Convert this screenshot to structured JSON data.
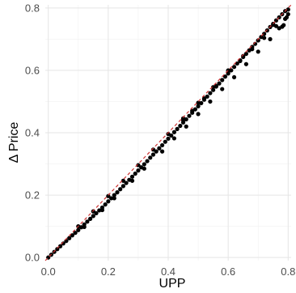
{
  "chart_data": {
    "type": "scatter",
    "title": "",
    "xlabel": "UPP",
    "ylabel": "Δ Price",
    "xlim": [
      -0.01,
      0.81
    ],
    "ylim": [
      -0.01,
      0.81
    ],
    "x_ticks": [
      0.0,
      0.2,
      0.4,
      0.6,
      0.8
    ],
    "y_ticks": [
      0.0,
      0.2,
      0.4,
      0.6,
      0.8
    ],
    "x_tick_labels": [
      "0.0",
      "0.2",
      "0.4",
      "0.6",
      "0.8"
    ],
    "y_tick_labels": [
      "0.0",
      "0.2",
      "0.4",
      "0.6",
      "0.8"
    ],
    "grid": true,
    "reference_line": {
      "style": "dashed",
      "color": "#cc3333",
      "slope": 1,
      "intercept": 0
    },
    "point_color": "#000000",
    "series": [
      {
        "points": [
          [
            0.0,
            0.0
          ],
          [
            0.01,
            0.009
          ],
          [
            0.02,
            0.018
          ],
          [
            0.03,
            0.027
          ],
          [
            0.04,
            0.036
          ],
          [
            0.05,
            0.045
          ],
          [
            0.06,
            0.053
          ],
          [
            0.07,
            0.062
          ],
          [
            0.08,
            0.071
          ],
          [
            0.09,
            0.079
          ],
          [
            0.1,
            0.088
          ],
          [
            0.11,
            0.097
          ],
          [
            0.12,
            0.106
          ],
          [
            0.13,
            0.115
          ],
          [
            0.14,
            0.124
          ],
          [
            0.15,
            0.133
          ],
          [
            0.16,
            0.142
          ],
          [
            0.17,
            0.151
          ],
          [
            0.18,
            0.16
          ],
          [
            0.19,
            0.17
          ],
          [
            0.2,
            0.18
          ],
          [
            0.21,
            0.19
          ],
          [
            0.22,
            0.2
          ],
          [
            0.23,
            0.209
          ],
          [
            0.24,
            0.219
          ],
          [
            0.25,
            0.229
          ],
          [
            0.26,
            0.239
          ],
          [
            0.27,
            0.249
          ],
          [
            0.28,
            0.259
          ],
          [
            0.29,
            0.269
          ],
          [
            0.3,
            0.279
          ],
          [
            0.31,
            0.289
          ],
          [
            0.32,
            0.299
          ],
          [
            0.33,
            0.309
          ],
          [
            0.34,
            0.32
          ],
          [
            0.35,
            0.33
          ],
          [
            0.36,
            0.34
          ],
          [
            0.37,
            0.35
          ],
          [
            0.38,
            0.36
          ],
          [
            0.39,
            0.371
          ],
          [
            0.4,
            0.381
          ],
          [
            0.41,
            0.391
          ],
          [
            0.42,
            0.402
          ],
          [
            0.43,
            0.412
          ],
          [
            0.44,
            0.422
          ],
          [
            0.45,
            0.433
          ],
          [
            0.46,
            0.443
          ],
          [
            0.47,
            0.454
          ],
          [
            0.48,
            0.464
          ],
          [
            0.49,
            0.475
          ],
          [
            0.5,
            0.485
          ],
          [
            0.51,
            0.495
          ],
          [
            0.52,
            0.506
          ],
          [
            0.53,
            0.516
          ],
          [
            0.54,
            0.527
          ],
          [
            0.55,
            0.537
          ],
          [
            0.56,
            0.548
          ],
          [
            0.57,
            0.558
          ],
          [
            0.58,
            0.569
          ],
          [
            0.59,
            0.58
          ],
          [
            0.6,
            0.59
          ],
          [
            0.61,
            0.6
          ],
          [
            0.62,
            0.611
          ],
          [
            0.63,
            0.622
          ],
          [
            0.64,
            0.632
          ],
          [
            0.65,
            0.643
          ],
          [
            0.66,
            0.653
          ],
          [
            0.67,
            0.664
          ],
          [
            0.68,
            0.675
          ],
          [
            0.69,
            0.685
          ],
          [
            0.7,
            0.696
          ],
          [
            0.71,
            0.707
          ],
          [
            0.72,
            0.717
          ],
          [
            0.73,
            0.728
          ],
          [
            0.74,
            0.739
          ],
          [
            0.75,
            0.749
          ],
          [
            0.76,
            0.76
          ],
          [
            0.77,
            0.77
          ],
          [
            0.78,
            0.78
          ],
          [
            0.79,
            0.79
          ],
          [
            0.1,
            0.1
          ],
          [
            0.15,
            0.148
          ],
          [
            0.2,
            0.197
          ],
          [
            0.25,
            0.246
          ],
          [
            0.3,
            0.296
          ],
          [
            0.35,
            0.346
          ],
          [
            0.4,
            0.396
          ],
          [
            0.45,
            0.446
          ],
          [
            0.5,
            0.496
          ],
          [
            0.55,
            0.546
          ],
          [
            0.6,
            0.596
          ],
          [
            0.65,
            0.646
          ],
          [
            0.7,
            0.696
          ],
          [
            0.75,
            0.746
          ],
          [
            0.8,
            0.795
          ],
          [
            0.12,
            0.098
          ],
          [
            0.18,
            0.152
          ],
          [
            0.22,
            0.19
          ],
          [
            0.28,
            0.246
          ],
          [
            0.32,
            0.285
          ],
          [
            0.38,
            0.34
          ],
          [
            0.42,
            0.382
          ],
          [
            0.46,
            0.42
          ],
          [
            0.5,
            0.46
          ],
          [
            0.54,
            0.5
          ],
          [
            0.58,
            0.54
          ],
          [
            0.62,
            0.578
          ],
          [
            0.66,
            0.62
          ],
          [
            0.7,
            0.66
          ],
          [
            0.74,
            0.7
          ],
          [
            0.77,
            0.735
          ],
          [
            0.78,
            0.74
          ],
          [
            0.79,
            0.765
          ],
          [
            0.795,
            0.77
          ],
          [
            0.785,
            0.745
          ],
          [
            0.6,
            0.6
          ],
          [
            0.64,
            0.63
          ],
          [
            0.68,
            0.668
          ],
          [
            0.72,
            0.704
          ],
          [
            0.76,
            0.742
          ],
          [
            0.8,
            0.78
          ],
          [
            0.45,
            0.44
          ],
          [
            0.48,
            0.47
          ],
          [
            0.52,
            0.51
          ],
          [
            0.56,
            0.55
          ]
        ]
      }
    ]
  }
}
